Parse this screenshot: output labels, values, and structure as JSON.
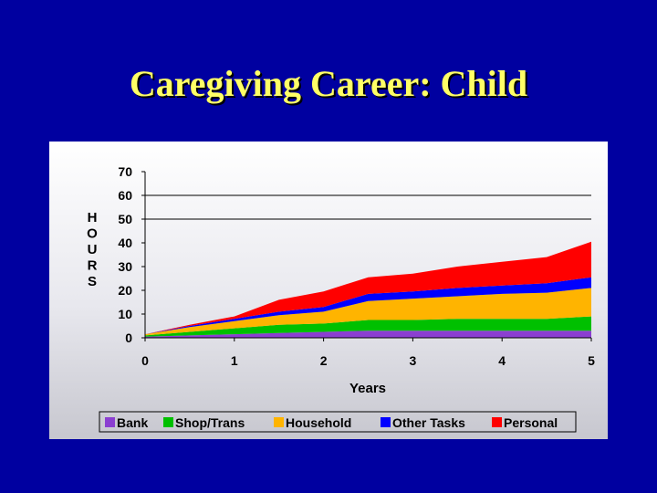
{
  "slide": {
    "title": "Caregiving Career: Child"
  },
  "chart_data": {
    "type": "area",
    "stacked": true,
    "xlabel": "Years",
    "ylabel": "HOURS",
    "xlim": [
      0,
      5
    ],
    "ylim": [
      0,
      70
    ],
    "x_ticks": [
      0,
      1,
      2,
      3,
      4,
      5
    ],
    "y_ticks": [
      0,
      10,
      20,
      30,
      40,
      50,
      60,
      70
    ],
    "grid_y": [
      50,
      60
    ],
    "legend_position": "bottom",
    "x": [
      0,
      0.5,
      1,
      1.5,
      2,
      2.5,
      3,
      3.5,
      4,
      4.5,
      5
    ],
    "series": [
      {
        "name": "Bank",
        "color": "#8b3fd1",
        "values": [
          0.5,
          1,
          1.5,
          2,
          2.5,
          3,
          3,
          3,
          3,
          3,
          3
        ]
      },
      {
        "name": "Shop/Trans",
        "color": "#00c000",
        "values": [
          0.5,
          1.5,
          2.5,
          3.5,
          3.5,
          4.5,
          4.5,
          5,
          5,
          5,
          6
        ]
      },
      {
        "name": "Household",
        "color": "#ffb400",
        "values": [
          0.5,
          2,
          3,
          4,
          5,
          8,
          9,
          9.5,
          10.5,
          11,
          12
        ]
      },
      {
        "name": "Other Tasks",
        "color": "#0000ff",
        "values": [
          0,
          0.5,
          1,
          1.5,
          2,
          3,
          3,
          3.5,
          3.5,
          4,
          4.5
        ]
      },
      {
        "name": "Personal",
        "color": "#ff0000",
        "values": [
          0,
          0.5,
          1,
          5,
          6.5,
          7,
          7.5,
          9,
          10,
          11,
          15
        ]
      }
    ]
  }
}
